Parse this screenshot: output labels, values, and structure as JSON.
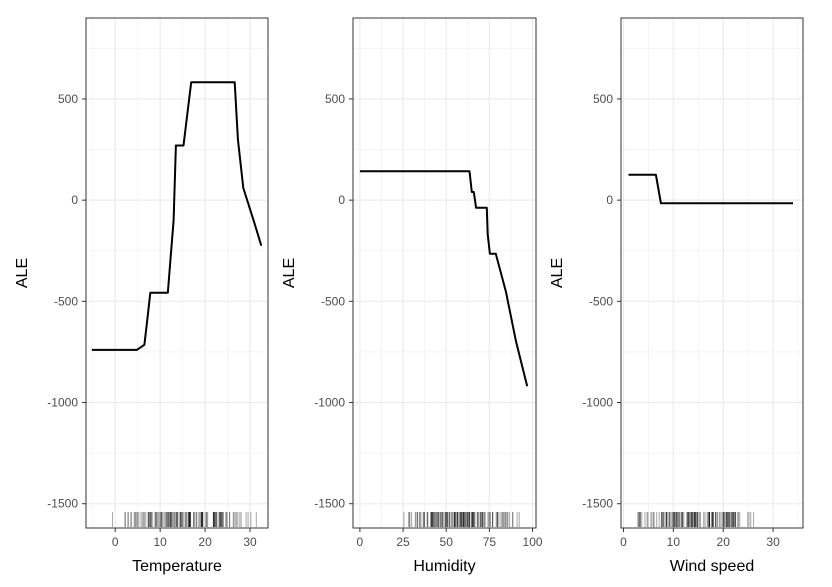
{
  "chart_data": [
    {
      "type": "line",
      "xlabel": "Temperature",
      "ylabel": "ALE",
      "xlim": [
        -6.5,
        34
      ],
      "ylim": [
        -1620,
        900
      ],
      "xticks": [
        0,
        10,
        20,
        30
      ],
      "yticks": [
        -1500,
        -1000,
        -500,
        0,
        500
      ],
      "grid": true,
      "points": [
        {
          "x": -5.2,
          "y": -740
        },
        {
          "x": 4.8,
          "y": -740
        },
        {
          "x": 6.5,
          "y": -715
        },
        {
          "x": 7.3,
          "y": -560
        },
        {
          "x": 7.8,
          "y": -458
        },
        {
          "x": 11.7,
          "y": -458
        },
        {
          "x": 13.0,
          "y": -100
        },
        {
          "x": 13.5,
          "y": 270
        },
        {
          "x": 15.2,
          "y": 270
        },
        {
          "x": 16.9,
          "y": 583
        },
        {
          "x": 26.6,
          "y": 583
        },
        {
          "x": 27.3,
          "y": 300
        },
        {
          "x": 28.5,
          "y": 60
        },
        {
          "x": 30.8,
          "y": -100
        },
        {
          "x": 32.5,
          "y": -225
        }
      ],
      "rug": {
        "from": -1.0,
        "to": 32.0,
        "count": 150
      }
    },
    {
      "type": "line",
      "xlabel": "Humidity",
      "ylabel": "ALE",
      "xlim": [
        -4,
        102
      ],
      "ylim": [
        -1620,
        900
      ],
      "xticks": [
        0,
        25,
        50,
        75,
        100
      ],
      "yticks": [
        -1500,
        -1000,
        -500,
        0,
        500
      ],
      "grid": true,
      "points": [
        {
          "x": 0,
          "y": 143
        },
        {
          "x": 63.5,
          "y": 143
        },
        {
          "x": 64.8,
          "y": 40
        },
        {
          "x": 66.0,
          "y": 40
        },
        {
          "x": 67.3,
          "y": -38
        },
        {
          "x": 73.5,
          "y": -38
        },
        {
          "x": 74.0,
          "y": -170
        },
        {
          "x": 75.3,
          "y": -265
        },
        {
          "x": 78.7,
          "y": -265
        },
        {
          "x": 84.5,
          "y": -450
        },
        {
          "x": 90.5,
          "y": -700
        },
        {
          "x": 96.9,
          "y": -920
        }
      ],
      "rug": {
        "from": 21.0,
        "to": 97.0,
        "count": 150
      }
    },
    {
      "type": "line",
      "xlabel": "Wind speed",
      "ylabel": "ALE",
      "xlim": [
        -0.5,
        36
      ],
      "ylim": [
        -1620,
        900
      ],
      "xticks": [
        0,
        10,
        20,
        30
      ],
      "yticks": [
        -1500,
        -1000,
        -500,
        0,
        500
      ],
      "grid": true,
      "points": [
        {
          "x": 1.0,
          "y": 125
        },
        {
          "x": 6.5,
          "y": 125
        },
        {
          "x": 7.5,
          "y": -15
        },
        {
          "x": 34.0,
          "y": -15
        }
      ],
      "rug": {
        "from": 1.5,
        "to": 27.0,
        "count": 150
      }
    }
  ]
}
